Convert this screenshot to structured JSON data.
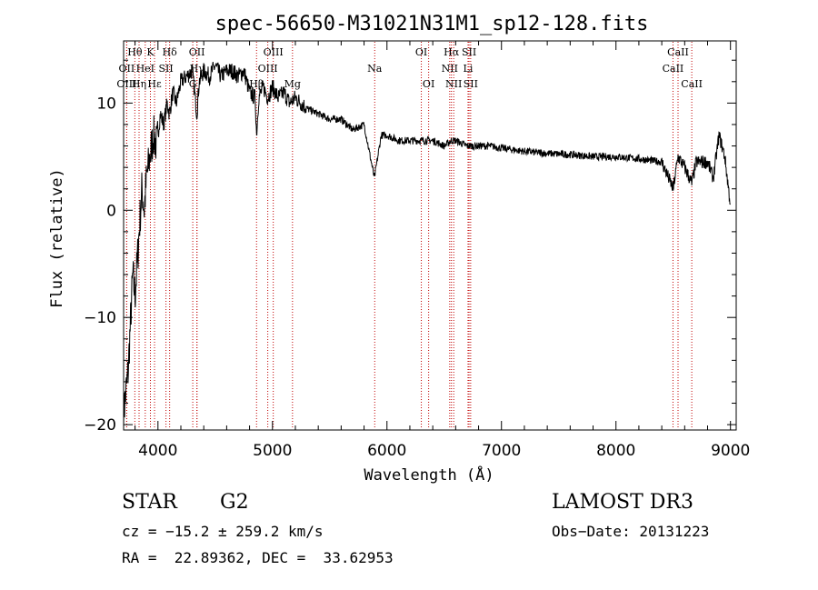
{
  "chart_data": {
    "type": "line",
    "title": "spec-56650-M31021N31M1_sp12-128.fits",
    "xlabel": "Wavelength (Å)",
    "ylabel": "Flux (relative)",
    "xlim": [
      3700,
      9050
    ],
    "ylim": [
      -20.5,
      15.8
    ],
    "xticks": [
      4000,
      5000,
      6000,
      7000,
      8000,
      9000
    ],
    "xtick_labels": [
      "4000",
      "5000",
      "6000",
      "7000",
      "8000",
      "9000"
    ],
    "yticks": [
      -20,
      -10,
      0,
      10
    ],
    "ytick_labels": [
      "−20",
      "−10",
      "0",
      "10"
    ],
    "spectrum": {
      "name": "flux",
      "x": [
        3700,
        3740,
        3780,
        3800,
        3830,
        3860,
        3880,
        3900,
        3930,
        3960,
        3990,
        4020,
        4050,
        4080,
        4100,
        4130,
        4160,
        4200,
        4250,
        4300,
        4340,
        4360,
        4400,
        4450,
        4500,
        4550,
        4600,
        4650,
        4700,
        4750,
        4800,
        4850,
        4861,
        4880,
        4920,
        4960,
        5000,
        5050,
        5100,
        5150,
        5200,
        5300,
        5400,
        5500,
        5600,
        5700,
        5800,
        5890,
        5950,
        6000,
        6100,
        6200,
        6300,
        6400,
        6500,
        6563,
        6600,
        6700,
        6800,
        6900,
        7000,
        7200,
        7400,
        7600,
        7800,
        8000,
        8200,
        8400,
        8500,
        8542,
        8600,
        8662,
        8700,
        8800,
        8850,
        8900,
        8950,
        9000
      ],
      "y": [
        -19,
        -15,
        -6,
        -8,
        -3,
        2,
        0,
        3,
        5,
        7,
        6,
        9,
        8,
        10,
        9,
        11,
        10,
        12,
        12.5,
        13,
        9,
        12,
        13,
        12.5,
        13.5,
        12.5,
        13,
        13,
        12.5,
        13,
        11,
        10.5,
        7,
        10.5,
        11.5,
        10.5,
        11.5,
        10.5,
        11,
        10,
        10.5,
        9.5,
        9,
        8.5,
        8.5,
        7.5,
        8,
        3,
        7,
        7,
        6.5,
        6.5,
        6.5,
        6.5,
        6,
        6.5,
        6.5,
        6,
        6,
        6,
        5.8,
        5.5,
        5.3,
        5.2,
        5,
        5,
        4.8,
        4.5,
        2,
        5,
        4,
        2.5,
        4.5,
        4.5,
        3,
        7,
        5,
        0.5
      ]
    },
    "line_markers": [
      {
        "label": "Hθ",
        "x": 3798,
        "row": 0
      },
      {
        "label": "OII",
        "x": 3727,
        "row": 1
      },
      {
        "label": "OIII",
        "x": 3727,
        "row": 2
      },
      {
        "label": "Hη",
        "x": 3835,
        "row": 2
      },
      {
        "label": "K",
        "x": 3934,
        "row": 0
      },
      {
        "label": "HeI",
        "x": 3889,
        "row": 1
      },
      {
        "label": "Hε",
        "x": 3970,
        "row": 2
      },
      {
        "label": "Hδ",
        "x": 4102,
        "row": 0
      },
      {
        "label": "SII",
        "x": 4070,
        "row": 1
      },
      {
        "label": "OII",
        "x": 4340,
        "row": 0
      },
      {
        "label": "Hγ",
        "x": 4341,
        "row": 1
      },
      {
        "label": "G",
        "x": 4304,
        "row": 2
      },
      {
        "label": "OIII",
        "x": 5007,
        "row": 0
      },
      {
        "label": "OIII",
        "x": 4959,
        "row": 1
      },
      {
        "label": "Hβ",
        "x": 4861,
        "row": 2
      },
      {
        "label": "Mg",
        "x": 5175,
        "row": 2
      },
      {
        "label": "Na",
        "x": 5893,
        "row": 1
      },
      {
        "label": "OI",
        "x": 6300,
        "row": 0
      },
      {
        "label": "OI",
        "x": 6364,
        "row": 2
      },
      {
        "label": "Hα",
        "x": 6563,
        "row": 0
      },
      {
        "label": "NII",
        "x": 6548,
        "row": 1
      },
      {
        "label": "NII",
        "x": 6583,
        "row": 2
      },
      {
        "label": "SII",
        "x": 6717,
        "row": 0
      },
      {
        "label": "Li",
        "x": 6708,
        "row": 1
      },
      {
        "label": "SII",
        "x": 6731,
        "row": 2
      },
      {
        "label": "CaII",
        "x": 8542,
        "row": 0
      },
      {
        "label": "CaII",
        "x": 8498,
        "row": 1
      },
      {
        "label": "CaII",
        "x": 8662,
        "row": 2
      }
    ]
  },
  "info": {
    "object_class": "STAR",
    "subclass": "G2",
    "survey": "LAMOST DR3",
    "cz": "cz = −15.2 ± 259.2 km/s",
    "obs_date": "Obs−Date: 20131223",
    "coords": "RA =  22.89362, DEC =  33.62953"
  },
  "colors": {
    "spectrum": "#000000",
    "marker": "#c00000",
    "axes": "#000000"
  }
}
